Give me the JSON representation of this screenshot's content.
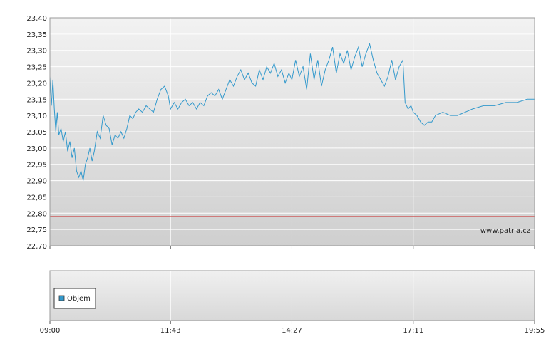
{
  "chart_data": {
    "type": "line",
    "watermark": "www.patria.cz",
    "x_ticks": [
      "09:00",
      "11:43",
      "14:27",
      "17:11",
      "19:55"
    ],
    "y_ticks": [
      "23,40",
      "23,35",
      "23,30",
      "23,25",
      "23,20",
      "23,15",
      "23,10",
      "23,05",
      "23,00",
      "22,95",
      "22,90",
      "22,85",
      "22,80",
      "22,75",
      "22,70"
    ],
    "ylim": [
      22.7,
      23.4
    ],
    "xlim": [
      "09:00",
      "19:55"
    ],
    "reference_line": {
      "value": 22.79,
      "color": "#cc4444"
    },
    "grid": true,
    "colors": {
      "line": "#3399cc",
      "legend_swatch": "#3399cc"
    },
    "series": [
      {
        "values": [
          [
            "09:00",
            23.22
          ],
          [
            "09:02",
            23.13
          ],
          [
            "09:04",
            23.21
          ],
          [
            "09:06",
            23.12
          ],
          [
            "09:08",
            23.05
          ],
          [
            "09:10",
            23.11
          ],
          [
            "09:12",
            23.04
          ],
          [
            "09:15",
            23.06
          ],
          [
            "09:18",
            23.02
          ],
          [
            "09:21",
            23.05
          ],
          [
            "09:24",
            22.99
          ],
          [
            "09:27",
            23.02
          ],
          [
            "09:30",
            22.97
          ],
          [
            "09:33",
            23.0
          ],
          [
            "09:36",
            22.93
          ],
          [
            "09:39",
            22.91
          ],
          [
            "09:42",
            22.93
          ],
          [
            "09:45",
            22.9
          ],
          [
            "09:48",
            22.95
          ],
          [
            "09:51",
            22.97
          ],
          [
            "09:54",
            23.0
          ],
          [
            "09:57",
            22.96
          ],
          [
            "10:00",
            22.99
          ],
          [
            "10:04",
            23.05
          ],
          [
            "10:08",
            23.03
          ],
          [
            "10:12",
            23.1
          ],
          [
            "10:16",
            23.07
          ],
          [
            "10:20",
            23.06
          ],
          [
            "10:24",
            23.01
          ],
          [
            "10:28",
            23.04
          ],
          [
            "10:32",
            23.03
          ],
          [
            "10:36",
            23.05
          ],
          [
            "10:40",
            23.03
          ],
          [
            "10:44",
            23.06
          ],
          [
            "10:48",
            23.1
          ],
          [
            "10:52",
            23.09
          ],
          [
            "10:56",
            23.11
          ],
          [
            "11:00",
            23.12
          ],
          [
            "11:05",
            23.11
          ],
          [
            "11:10",
            23.13
          ],
          [
            "11:15",
            23.12
          ],
          [
            "11:20",
            23.11
          ],
          [
            "11:25",
            23.15
          ],
          [
            "11:30",
            23.18
          ],
          [
            "11:35",
            23.19
          ],
          [
            "11:40",
            23.16
          ],
          [
            "11:43",
            23.12
          ],
          [
            "11:48",
            23.14
          ],
          [
            "11:53",
            23.12
          ],
          [
            "11:58",
            23.14
          ],
          [
            "12:03",
            23.15
          ],
          [
            "12:08",
            23.13
          ],
          [
            "12:13",
            23.14
          ],
          [
            "12:18",
            23.12
          ],
          [
            "12:23",
            23.14
          ],
          [
            "12:28",
            23.13
          ],
          [
            "12:33",
            23.16
          ],
          [
            "12:38",
            23.17
          ],
          [
            "12:43",
            23.16
          ],
          [
            "12:48",
            23.18
          ],
          [
            "12:53",
            23.15
          ],
          [
            "12:58",
            23.18
          ],
          [
            "13:03",
            23.21
          ],
          [
            "13:08",
            23.19
          ],
          [
            "13:13",
            23.22
          ],
          [
            "13:18",
            23.24
          ],
          [
            "13:23",
            23.21
          ],
          [
            "13:28",
            23.23
          ],
          [
            "13:33",
            23.2
          ],
          [
            "13:38",
            23.19
          ],
          [
            "13:43",
            23.24
          ],
          [
            "13:48",
            23.21
          ],
          [
            "13:53",
            23.25
          ],
          [
            "13:58",
            23.23
          ],
          [
            "14:03",
            23.26
          ],
          [
            "14:08",
            23.22
          ],
          [
            "14:13",
            23.24
          ],
          [
            "14:18",
            23.2
          ],
          [
            "14:23",
            23.23
          ],
          [
            "14:27",
            23.21
          ],
          [
            "14:32",
            23.27
          ],
          [
            "14:37",
            23.22
          ],
          [
            "14:42",
            23.25
          ],
          [
            "14:47",
            23.18
          ],
          [
            "14:52",
            23.29
          ],
          [
            "14:57",
            23.21
          ],
          [
            "15:02",
            23.27
          ],
          [
            "15:07",
            23.19
          ],
          [
            "15:12",
            23.24
          ],
          [
            "15:17",
            23.27
          ],
          [
            "15:22",
            23.31
          ],
          [
            "15:27",
            23.23
          ],
          [
            "15:32",
            23.29
          ],
          [
            "15:37",
            23.26
          ],
          [
            "15:42",
            23.3
          ],
          [
            "15:47",
            23.24
          ],
          [
            "15:52",
            23.28
          ],
          [
            "15:57",
            23.31
          ],
          [
            "16:02",
            23.25
          ],
          [
            "16:07",
            23.29
          ],
          [
            "16:12",
            23.32
          ],
          [
            "16:17",
            23.27
          ],
          [
            "16:22",
            23.23
          ],
          [
            "16:27",
            23.21
          ],
          [
            "16:32",
            23.19
          ],
          [
            "16:37",
            23.22
          ],
          [
            "16:42",
            23.27
          ],
          [
            "16:47",
            23.21
          ],
          [
            "16:52",
            23.25
          ],
          [
            "16:57",
            23.27
          ],
          [
            "17:00",
            23.14
          ],
          [
            "17:04",
            23.12
          ],
          [
            "17:08",
            23.13
          ],
          [
            "17:11",
            23.11
          ],
          [
            "17:16",
            23.1
          ],
          [
            "17:21",
            23.08
          ],
          [
            "17:26",
            23.07
          ],
          [
            "17:31",
            23.08
          ],
          [
            "17:36",
            23.08
          ],
          [
            "17:41",
            23.1
          ],
          [
            "17:51",
            23.11
          ],
          [
            "18:01",
            23.1
          ],
          [
            "18:11",
            23.1
          ],
          [
            "18:21",
            23.11
          ],
          [
            "18:31",
            23.12
          ],
          [
            "18:46",
            23.13
          ],
          [
            "19:01",
            23.13
          ],
          [
            "19:16",
            23.14
          ],
          [
            "19:31",
            23.14
          ],
          [
            "19:45",
            23.15
          ],
          [
            "19:55",
            23.15
          ]
        ]
      }
    ],
    "volume_panel": {
      "legend": {
        "label": "Objem",
        "placement": "top-left"
      }
    }
  }
}
